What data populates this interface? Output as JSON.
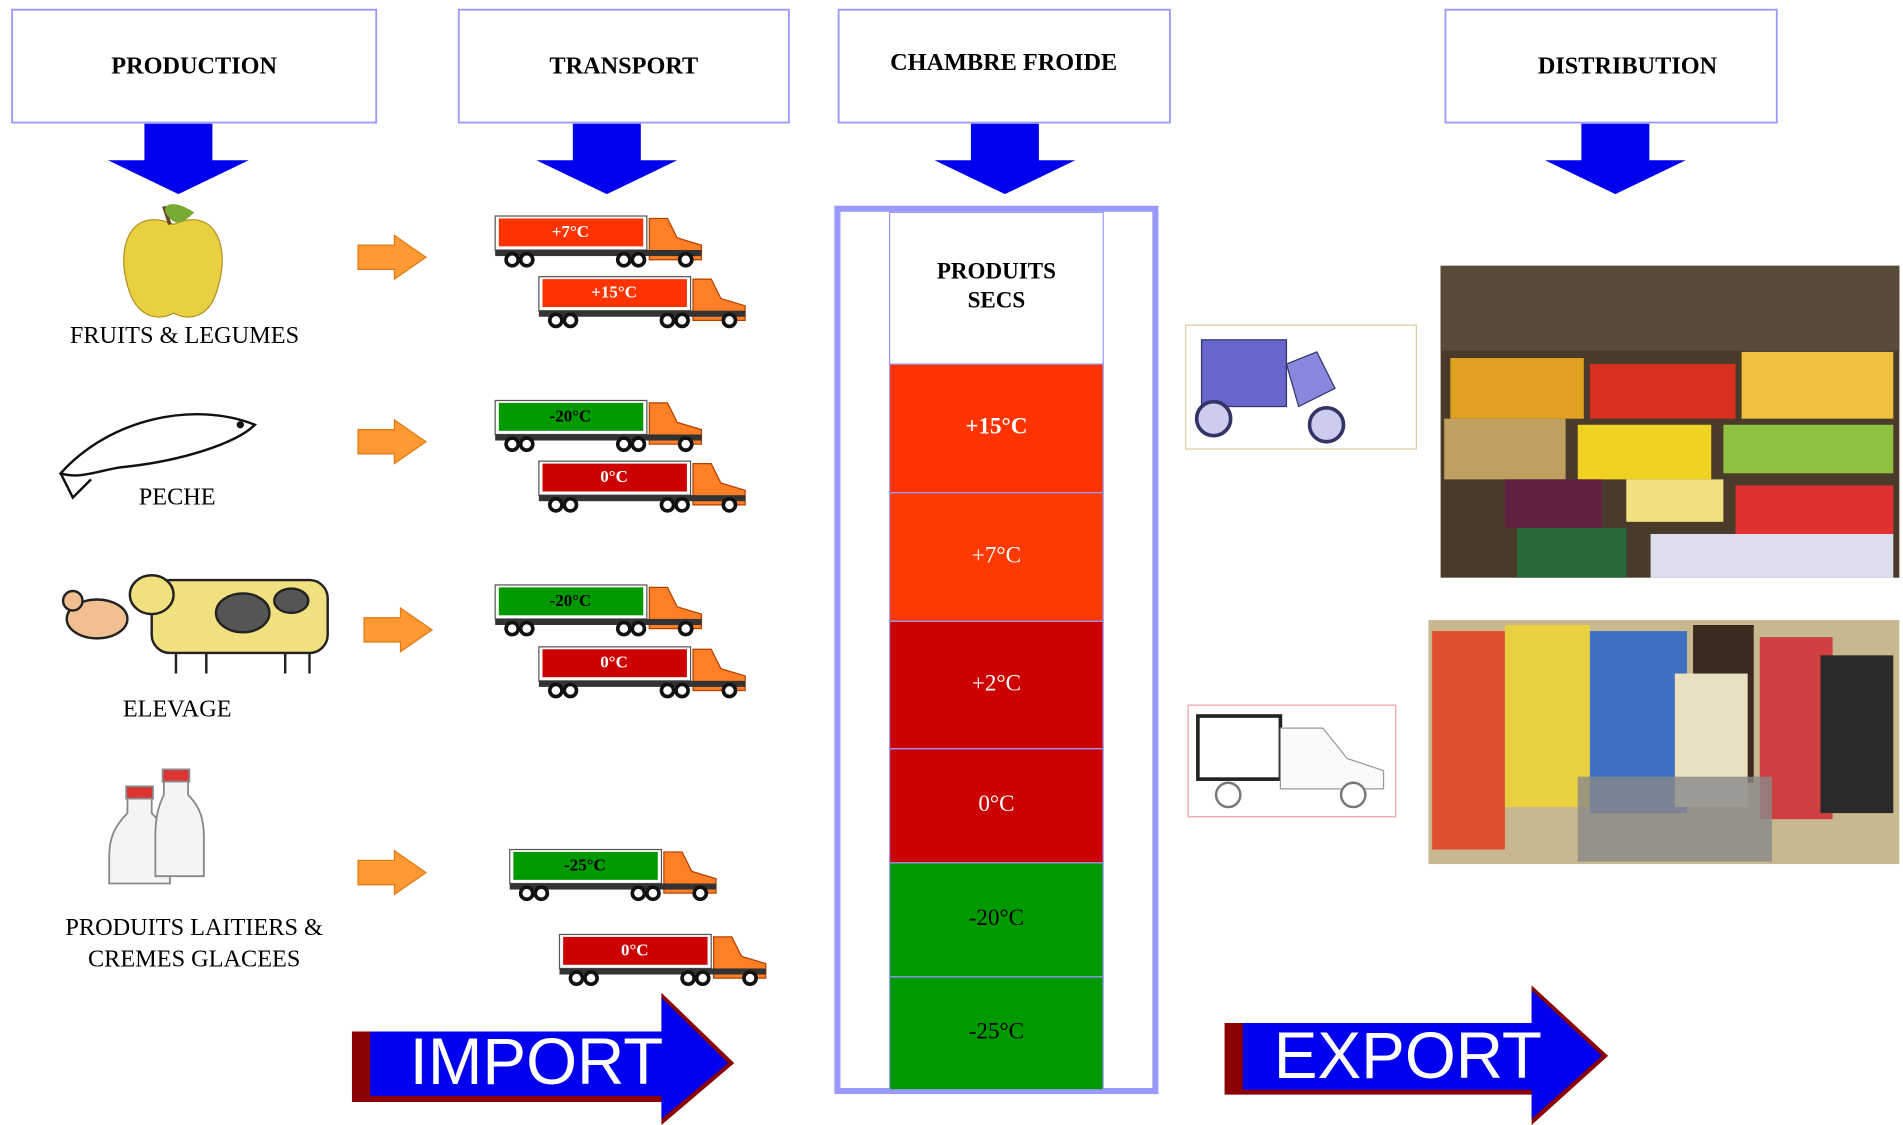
{
  "headers": [
    "PRODUCTION",
    "TRANSPORT",
    "CHAMBRE FROIDE",
    "DISTRIBUTION"
  ],
  "sources": [
    {
      "label": [
        "FRUITS & LEGUMES"
      ]
    },
    {
      "label": [
        "PECHE"
      ]
    },
    {
      "label": [
        "ELEVAGE"
      ]
    },
    {
      "label": [
        "PRODUITS LAITIERS &",
        "CREMES GLACEES"
      ]
    }
  ],
  "trucks": [
    {
      "label": "+7°C",
      "color": "#ff3300"
    },
    {
      "label": "+15°C",
      "color": "#ff3300"
    },
    {
      "label": "-20°C",
      "color": "#009900"
    },
    {
      "label": "0°C",
      "color": "#cc0000"
    },
    {
      "label": "-20°C",
      "color": "#009900"
    },
    {
      "label": "0°C",
      "color": "#cc0000"
    },
    {
      "label": "-25°C",
      "color": "#009900"
    },
    {
      "label": "0°C",
      "color": "#cc0000"
    }
  ],
  "chamber": {
    "title": [
      "PRODUITS",
      "SECS"
    ],
    "zones": [
      {
        "label": "+15°C",
        "color": "#ff3300"
      },
      {
        "label": "+7°C",
        "color": "#ff3a00"
      },
      {
        "label": "+2°C",
        "color": "#cc0000"
      },
      {
        "label": "0°C",
        "color": "#cc0000"
      },
      {
        "label": "-20°C",
        "color": "#009900"
      },
      {
        "label": "-25°C",
        "color": "#009900"
      }
    ]
  },
  "import": "IMPORT",
  "export": "EXPORT"
}
